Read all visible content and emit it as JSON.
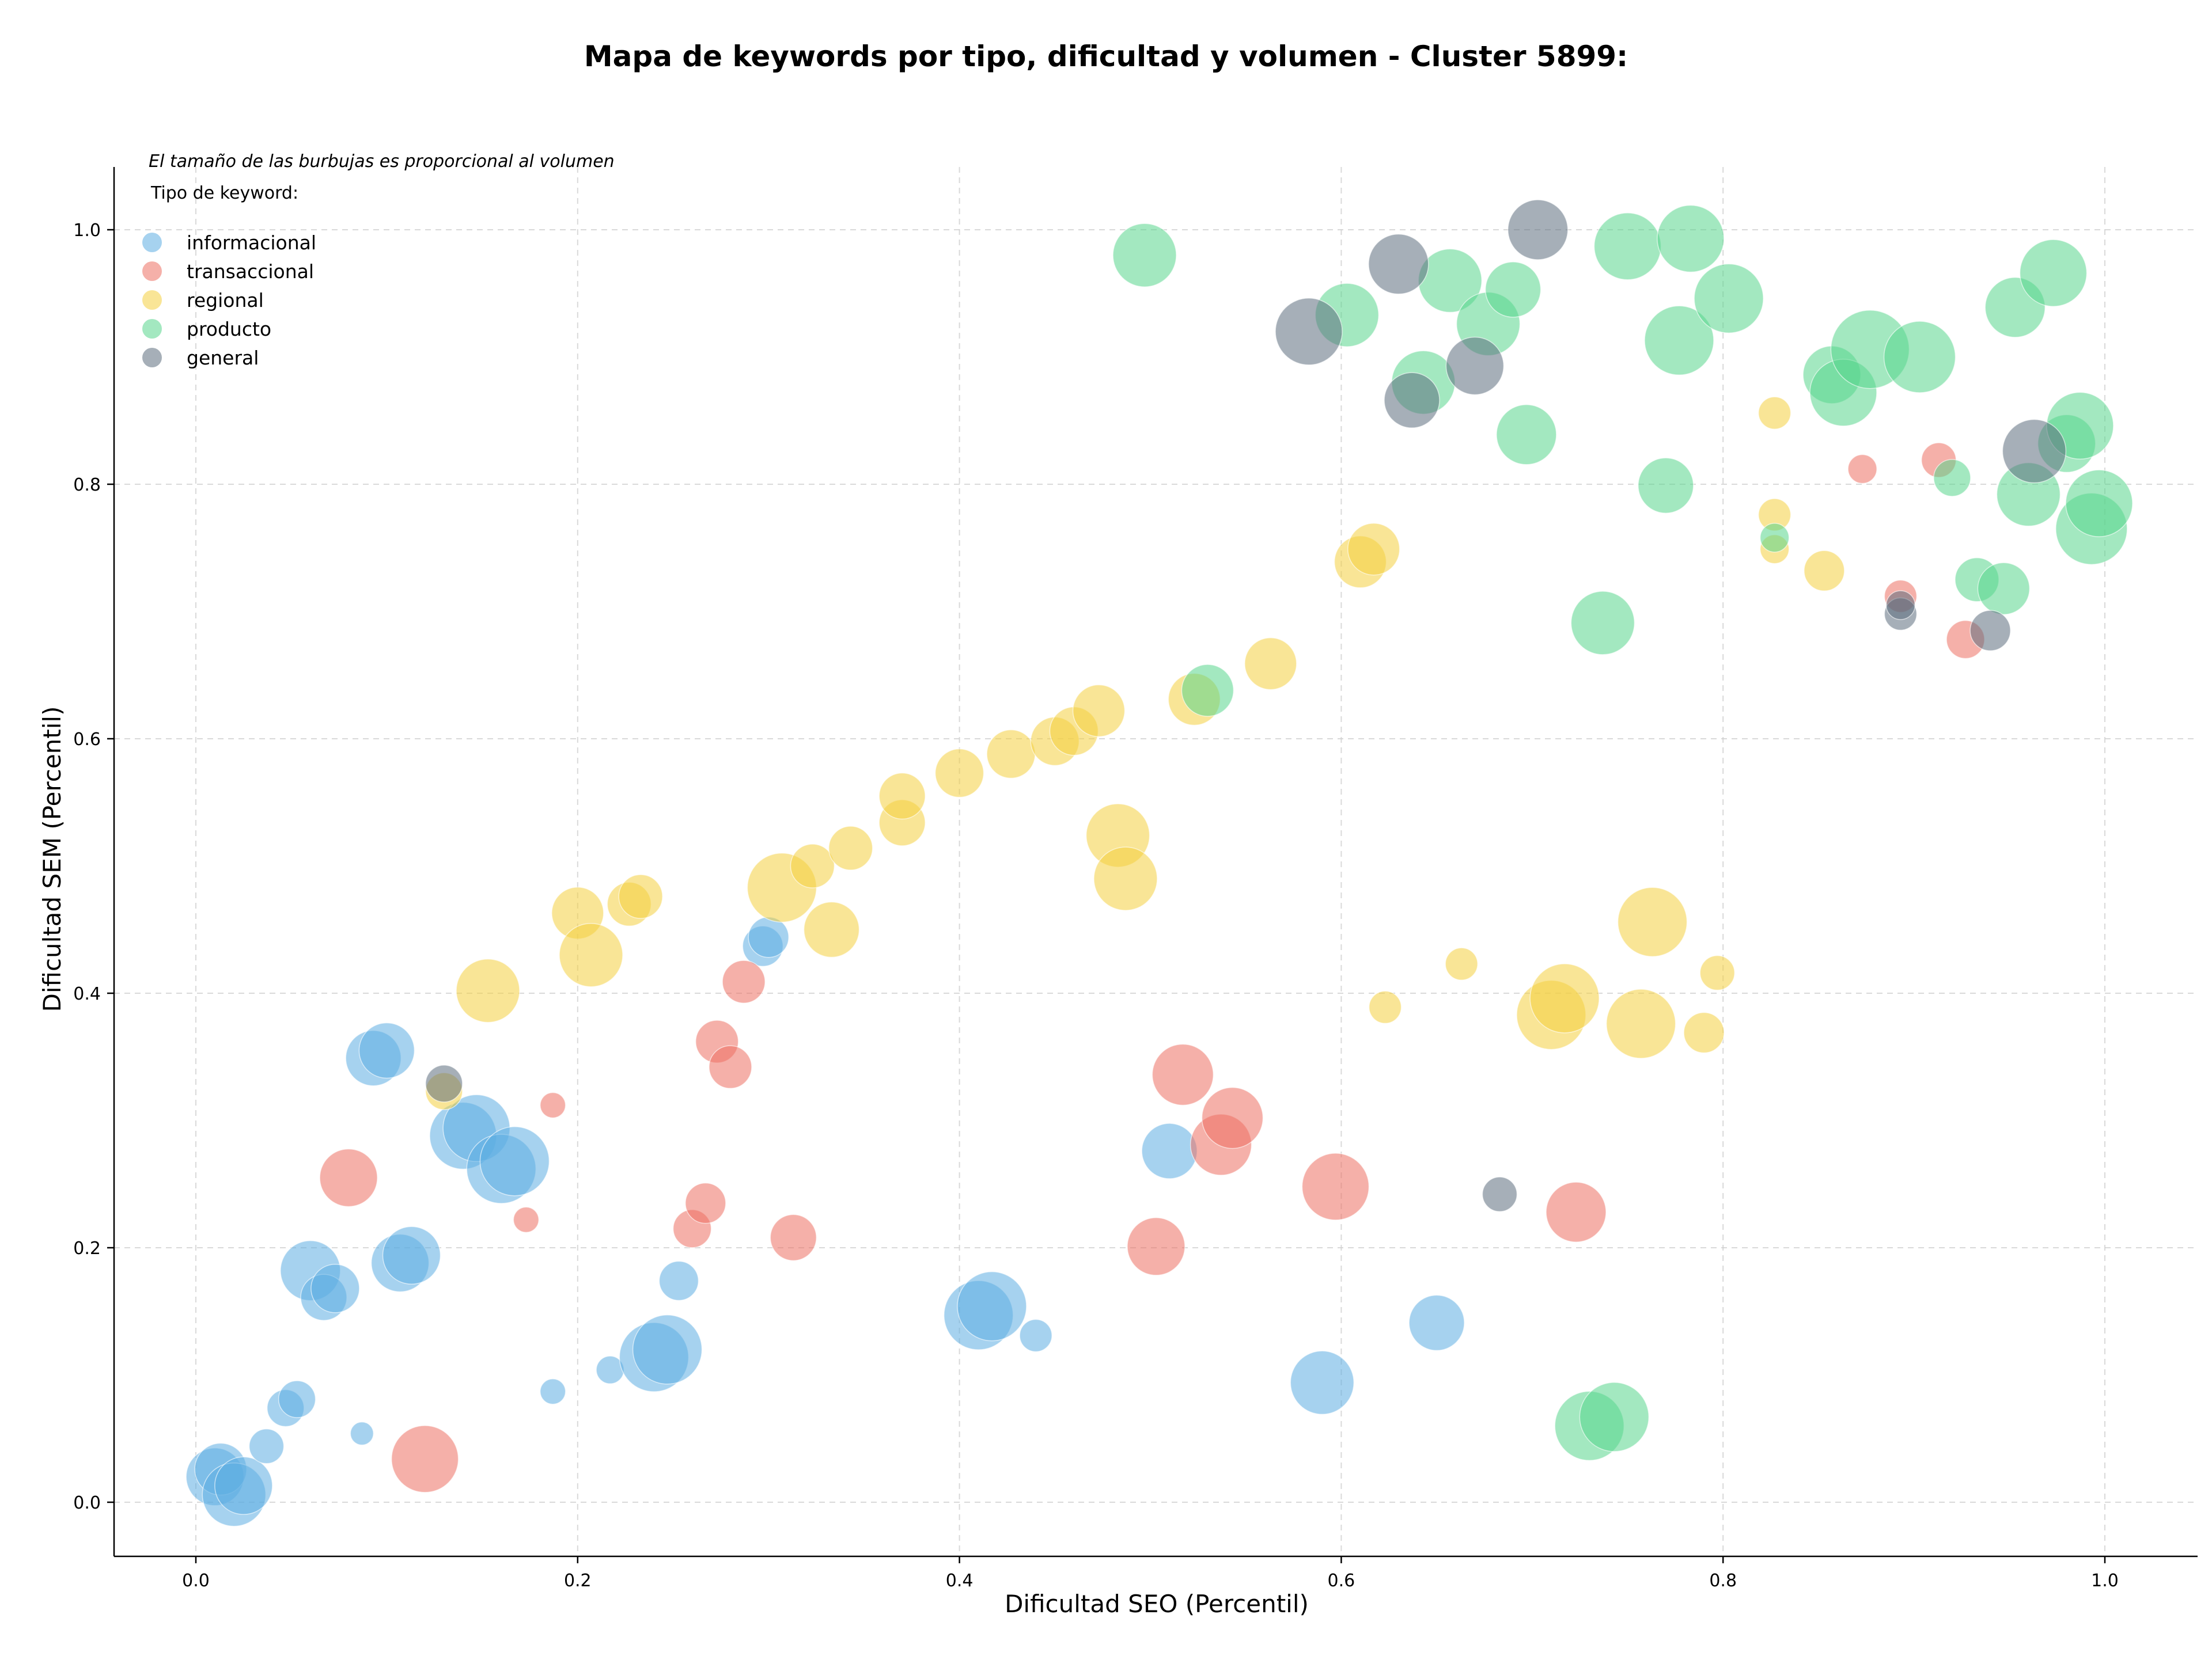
{
  "chart_data": {
    "type": "scatter",
    "title": "Mapa de keywords por tipo, dificultad y volumen - Cluster 5899:",
    "xlabel": "Dificultad SEO (Percentil)",
    "ylabel": "Dificultad SEM (Percentil)",
    "note": "El tamaño de las burbujas es proporcional al volumen",
    "legend_title": "Tipo de keyword:",
    "legend_position": "top-left",
    "grid": true,
    "xlim": [
      -0.04,
      1.05
    ],
    "ylim": [
      -0.04,
      1.05
    ],
    "x_ticks": [
      "0.0",
      "0.2",
      "0.4",
      "0.6",
      "0.8",
      "1.0"
    ],
    "y_ticks": [
      "0.0",
      "0.2",
      "0.4",
      "0.6",
      "0.8",
      "1.0"
    ],
    "series": [
      {
        "name": "informacional",
        "color": "#5dade2",
        "points": [
          [
            0.01,
            0.02,
            50
          ],
          [
            0.013,
            0.026,
            45
          ],
          [
            0.02,
            0.006,
            55
          ],
          [
            0.025,
            0.013,
            50
          ],
          [
            0.037,
            0.044,
            30
          ],
          [
            0.047,
            0.074,
            32
          ],
          [
            0.053,
            0.081,
            32
          ],
          [
            0.087,
            0.054,
            20
          ],
          [
            0.06,
            0.182,
            52
          ],
          [
            0.067,
            0.161,
            40
          ],
          [
            0.073,
            0.168,
            42
          ],
          [
            0.093,
            0.349,
            48
          ],
          [
            0.1,
            0.355,
            48
          ],
          [
            0.107,
            0.188,
            50
          ],
          [
            0.113,
            0.194,
            50
          ],
          [
            0.14,
            0.288,
            58
          ],
          [
            0.147,
            0.294,
            58
          ],
          [
            0.16,
            0.262,
            60
          ],
          [
            0.167,
            0.268,
            60
          ],
          [
            0.187,
            0.087,
            22
          ],
          [
            0.217,
            0.104,
            24
          ],
          [
            0.24,
            0.114,
            60
          ],
          [
            0.247,
            0.12,
            60
          ],
          [
            0.253,
            0.174,
            34
          ],
          [
            0.297,
            0.437,
            35
          ],
          [
            0.3,
            0.444,
            35
          ],
          [
            0.41,
            0.147,
            60
          ],
          [
            0.417,
            0.154,
            60
          ],
          [
            0.44,
            0.131,
            28
          ],
          [
            0.51,
            0.276,
            48
          ],
          [
            0.59,
            0.094,
            55
          ],
          [
            0.65,
            0.141,
            48
          ]
        ]
      },
      {
        "name": "transaccional",
        "color": "#ec7063",
        "points": [
          [
            0.08,
            0.255,
            50
          ],
          [
            0.12,
            0.034,
            58
          ],
          [
            0.173,
            0.222,
            22
          ],
          [
            0.187,
            0.312,
            22
          ],
          [
            0.26,
            0.215,
            33
          ],
          [
            0.267,
            0.235,
            35
          ],
          [
            0.273,
            0.362,
            37
          ],
          [
            0.28,
            0.342,
            37
          ],
          [
            0.287,
            0.409,
            37
          ],
          [
            0.313,
            0.208,
            40
          ],
          [
            0.503,
            0.201,
            50
          ],
          [
            0.517,
            0.336,
            53
          ],
          [
            0.537,
            0.281,
            53
          ],
          [
            0.543,
            0.302,
            53
          ],
          [
            0.597,
            0.248,
            58
          ],
          [
            0.723,
            0.228,
            52
          ],
          [
            0.873,
            0.812,
            25
          ],
          [
            0.893,
            0.712,
            28
          ],
          [
            0.913,
            0.819,
            30
          ],
          [
            0.927,
            0.678,
            33
          ]
        ]
      },
      {
        "name": "regional",
        "color": "#f4d03f",
        "points": [
          [
            0.13,
            0.323,
            32
          ],
          [
            0.153,
            0.402,
            55
          ],
          [
            0.2,
            0.463,
            45
          ],
          [
            0.207,
            0.43,
            55
          ],
          [
            0.227,
            0.47,
            38
          ],
          [
            0.233,
            0.476,
            38
          ],
          [
            0.307,
            0.483,
            60
          ],
          [
            0.323,
            0.5,
            38
          ],
          [
            0.333,
            0.45,
            48
          ],
          [
            0.343,
            0.514,
            38
          ],
          [
            0.37,
            0.534,
            40
          ],
          [
            0.37,
            0.555,
            40
          ],
          [
            0.4,
            0.573,
            42
          ],
          [
            0.427,
            0.588,
            42
          ],
          [
            0.45,
            0.598,
            42
          ],
          [
            0.46,
            0.606,
            42
          ],
          [
            0.473,
            0.622,
            45
          ],
          [
            0.483,
            0.524,
            55
          ],
          [
            0.487,
            0.49,
            55
          ],
          [
            0.523,
            0.631,
            45
          ],
          [
            0.563,
            0.659,
            45
          ],
          [
            0.61,
            0.739,
            45
          ],
          [
            0.617,
            0.749,
            45
          ],
          [
            0.623,
            0.389,
            28
          ],
          [
            0.663,
            0.423,
            28
          ],
          [
            0.71,
            0.383,
            60
          ],
          [
            0.717,
            0.396,
            60
          ],
          [
            0.757,
            0.376,
            60
          ],
          [
            0.763,
            0.456,
            60
          ],
          [
            0.79,
            0.369,
            35
          ],
          [
            0.797,
            0.416,
            30
          ],
          [
            0.827,
            0.856,
            28
          ],
          [
            0.827,
            0.776,
            28
          ],
          [
            0.827,
            0.749,
            25
          ],
          [
            0.853,
            0.732,
            35
          ]
        ]
      },
      {
        "name": "producto",
        "color": "#58d68d",
        "points": [
          [
            0.497,
            0.98,
            55
          ],
          [
            0.53,
            0.638,
            45
          ],
          [
            0.603,
            0.933,
            55
          ],
          [
            0.643,
            0.88,
            55
          ],
          [
            0.657,
            0.96,
            55
          ],
          [
            0.677,
            0.926,
            55
          ],
          [
            0.69,
            0.953,
            48
          ],
          [
            0.697,
            0.839,
            52
          ],
          [
            0.737,
            0.691,
            55
          ],
          [
            0.73,
            0.06,
            60
          ],
          [
            0.743,
            0.067,
            60
          ],
          [
            0.75,
            0.987,
            58
          ],
          [
            0.77,
            0.799,
            48
          ],
          [
            0.777,
            0.913,
            60
          ],
          [
            0.783,
            0.993,
            58
          ],
          [
            0.803,
            0.946,
            60
          ],
          [
            0.827,
            0.758,
            25
          ],
          [
            0.857,
            0.886,
            50
          ],
          [
            0.863,
            0.872,
            58
          ],
          [
            0.877,
            0.906,
            68
          ],
          [
            0.903,
            0.9,
            62
          ],
          [
            0.92,
            0.805,
            32
          ],
          [
            0.933,
            0.725,
            38
          ],
          [
            0.947,
            0.718,
            45
          ],
          [
            0.953,
            0.939,
            52
          ],
          [
            0.96,
            0.792,
            55
          ],
          [
            0.973,
            0.966,
            58
          ],
          [
            0.98,
            0.832,
            50
          ],
          [
            0.987,
            0.846,
            58
          ],
          [
            0.993,
            0.765,
            62
          ],
          [
            0.997,
            0.785,
            58
          ]
        ]
      },
      {
        "name": "general",
        "color": "#5d6d7e",
        "points": [
          [
            0.13,
            0.329,
            32
          ],
          [
            0.583,
            0.92,
            58
          ],
          [
            0.63,
            0.973,
            52
          ],
          [
            0.637,
            0.866,
            48
          ],
          [
            0.67,
            0.893,
            50
          ],
          [
            0.703,
            1.0,
            52
          ],
          [
            0.683,
            0.242,
            30
          ],
          [
            0.893,
            0.698,
            28
          ],
          [
            0.893,
            0.705,
            25
          ],
          [
            0.94,
            0.685,
            35
          ],
          [
            0.963,
            0.826,
            55
          ]
        ]
      }
    ]
  }
}
